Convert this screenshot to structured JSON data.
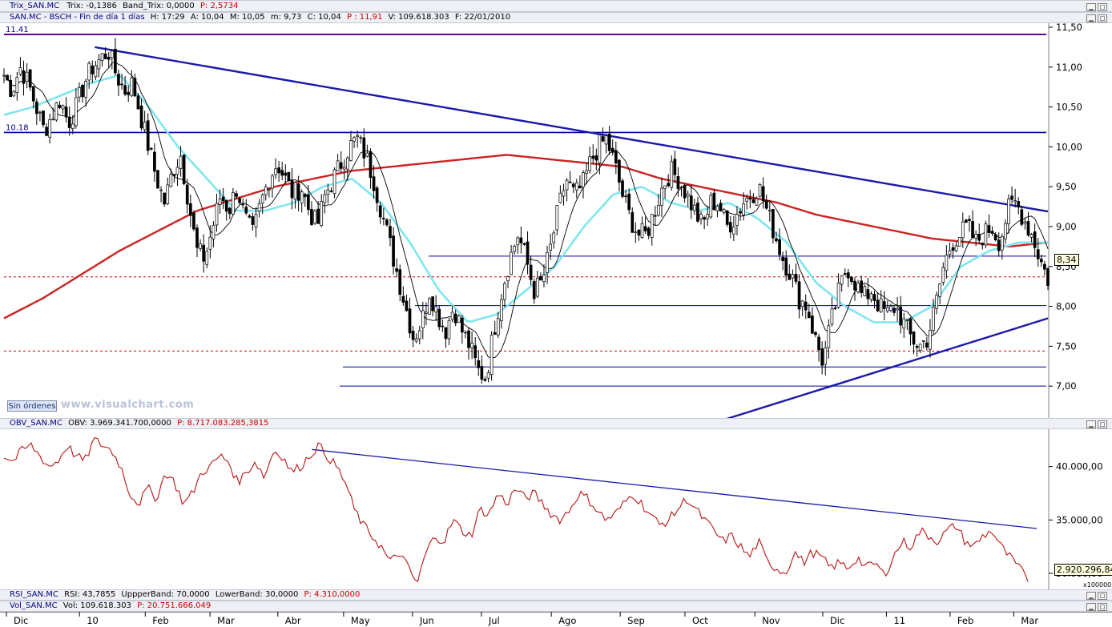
{
  "bars": {
    "trix": {
      "label": "Trix_SAN.MC",
      "items": [
        "Trix: -0,1386",
        "Band_Trix: 0,0000"
      ],
      "p": "P: 2,5734"
    },
    "price": {
      "label": "SAN.MC - BSCH - Fin de día 1 días",
      "items": [
        "H: 17:29",
        "A: 10,04",
        "M: 10,05",
        "m: 9,73",
        "C: 10,04"
      ],
      "p": "P : 11,91",
      "extra": [
        "V: 109.618.303",
        "F: 22/01/2010"
      ]
    },
    "obv": {
      "label": "OBV_SAN.MC",
      "items": [
        "OBV: 3.969.341.700,0000"
      ],
      "p": "P: 8.717.083.285,3815"
    },
    "rsi": {
      "label": "RSI_SAN.MC",
      "items": [
        "RSI: 43,7855",
        "UppperBand: 70,0000",
        "LowerBand: 30,0000"
      ],
      "p": "P: 4.310,0000"
    },
    "vol": {
      "label": "Vol_SAN.MC",
      "items": [
        "Vol: 109.618.303"
      ],
      "p": "P: 20.751.666.049"
    }
  },
  "watermark": "www.visualchart.com",
  "sin_ordenes": "Sin órdenes",
  "multiplier": "x100000",
  "chart_data": [
    {
      "type": "candlestick",
      "title": "SAN.MC - BSCH - Fin de día 1 días",
      "ylim": [
        6.6,
        11.55
      ],
      "yticks": [
        "11,50",
        "11,00",
        "10,50",
        "10,00",
        "9,50",
        "9,00",
        "8,50",
        "8,00",
        "7,50",
        "7,00"
      ],
      "ytick_values": [
        11.5,
        11.0,
        10.5,
        10.0,
        9.5,
        9.0,
        8.5,
        8.0,
        7.5,
        7.0
      ],
      "xticks": [
        "Dic",
        "10",
        "Feb",
        "Mar",
        "Abr",
        "May",
        "Jun",
        "Jul",
        "Ago",
        "Sep",
        "Oct",
        "Nov",
        "Dic",
        "11",
        "Feb",
        "Mar"
      ],
      "level_labels": [
        "11.41",
        "10.18"
      ],
      "last_value": "8,34",
      "close_series": [
        10.9,
        10.7,
        11.0,
        10.8,
        10.5,
        10.2,
        10.4,
        10.6,
        10.3,
        10.5,
        10.8,
        11.0,
        11.1,
        11.2,
        10.9,
        10.7,
        10.8,
        10.4,
        10.0,
        9.6,
        9.3,
        9.7,
        9.9,
        9.3,
        8.7,
        8.6,
        9.0,
        9.4,
        9.2,
        9.5,
        9.1,
        8.9,
        9.3,
        9.6,
        9.8,
        9.6,
        9.4,
        9.5,
        9.2,
        9.0,
        9.4,
        9.6,
        9.8,
        10.0,
        10.1,
        9.9,
        9.6,
        9.2,
        8.8,
        8.4,
        8.0,
        7.6,
        7.8,
        8.2,
        7.9,
        7.7,
        8.0,
        7.7,
        7.5,
        7.2,
        7.1,
        7.7,
        8.2,
        8.6,
        8.9,
        8.6,
        8.2,
        8.3,
        8.7,
        9.2,
        9.6,
        9.4,
        9.5,
        9.8,
        10.0,
        10.1,
        9.8,
        9.4,
        9.1,
        8.9,
        8.9,
        9.2,
        9.5,
        9.7,
        9.6,
        9.4,
        9.2,
        9.0,
        9.3,
        9.3,
        9.0,
        9.1,
        9.3,
        9.4,
        9.5,
        9.2,
        8.9,
        8.6,
        8.4,
        8.1,
        8.0,
        7.6,
        7.3,
        7.8,
        8.2,
        8.5,
        8.3,
        8.1,
        8.2,
        8.0,
        7.9,
        8.0,
        7.8,
        7.6,
        7.5,
        7.6,
        8.0,
        8.5,
        8.8,
        8.9,
        9.0,
        8.8,
        8.9,
        9.0,
        8.8,
        9.2,
        9.3,
        9.1,
        8.9,
        8.6,
        8.34
      ],
      "sma200_series": [
        7.85,
        8.1,
        8.4,
        8.7,
        8.95,
        9.2,
        9.35,
        9.5,
        9.6,
        9.7,
        9.75,
        9.8,
        9.85,
        9.9,
        9.85,
        9.8,
        9.75,
        9.6,
        9.5,
        9.4,
        9.3,
        9.15,
        9.05,
        8.95,
        8.85,
        8.8,
        8.75,
        8.8
      ],
      "sma_fast_series": [
        10.4,
        10.5,
        10.65,
        10.8,
        10.9,
        10.5,
        10.0,
        9.6,
        9.2,
        9.2,
        9.3,
        9.5,
        9.6,
        9.3,
        8.8,
        8.2,
        7.8,
        7.9,
        8.2,
        8.5,
        9.0,
        9.4,
        9.5,
        9.3,
        9.2,
        9.3,
        9.1,
        8.8,
        8.3,
        8.0,
        7.8,
        7.8,
        8.0,
        8.5,
        8.7,
        8.8,
        8.8
      ],
      "horizontal_levels": [
        11.41,
        10.18,
        8.63,
        8.37,
        8.01,
        7.44,
        7.24,
        7.0
      ],
      "trendlines": [
        {
          "from": [
            0.087,
            11.25
          ],
          "to": [
            1.0,
            9.19
          ]
        },
        {
          "from": [
            0.69,
            6.58
          ],
          "to": [
            1.0,
            7.85
          ]
        }
      ]
    },
    {
      "type": "line",
      "title": "OBV_SAN.MC",
      "ylim": [
        28.5,
        43.5
      ],
      "yticks": [
        "40.000,00",
        "35.000,00",
        "30.000,00"
      ],
      "ytick_values": [
        40,
        35,
        30
      ],
      "last_value": "2.920.296,84",
      "series_values": [
        41.0,
        40.5,
        41.5,
        42.0,
        41.0,
        40.0,
        40.5,
        42.0,
        41.0,
        40.5,
        42.5,
        42.0,
        41.5,
        40.0,
        37.5,
        36.5,
        38.0,
        37.0,
        39.5,
        38.5,
        36.5,
        37.5,
        39.5,
        40.0,
        41.0,
        40.5,
        38.5,
        39.5,
        40.5,
        39.0,
        41.5,
        41.0,
        39.5,
        40.0,
        41.0,
        42.0,
        41.0,
        40.0,
        38.5,
        36.0,
        34.5,
        33.5,
        32.5,
        31.0,
        32.0,
        30.5,
        29.0,
        32.0,
        33.5,
        33.0,
        35.0,
        34.0,
        33.5,
        36.0,
        35.5,
        37.5,
        36.5,
        38.0,
        37.0,
        37.5,
        36.5,
        35.5,
        35.0,
        36.0,
        37.5,
        37.0,
        36.0,
        35.0,
        35.5,
        36.5,
        37.5,
        36.5,
        35.5,
        34.5,
        35.0,
        36.0,
        37.0,
        36.0,
        35.0,
        34.0,
        33.0,
        33.5,
        32.5,
        31.5,
        33.0,
        31.0,
        30.5,
        30.0,
        32.0,
        31.0,
        32.0,
        31.5,
        30.5,
        31.0,
        30.5,
        31.5,
        30.5,
        31.0,
        29.8,
        31.5,
        33.0,
        32.5,
        34.0,
        33.5,
        33.0,
        34.0,
        34.5,
        33.0,
        32.5,
        33.5,
        34.0,
        32.5,
        31.5,
        30.5,
        29.5
      ],
      "trendline": {
        "from": [
          0.295,
          41.6
        ],
        "to": [
          1.0,
          34.2
        ]
      }
    }
  ]
}
